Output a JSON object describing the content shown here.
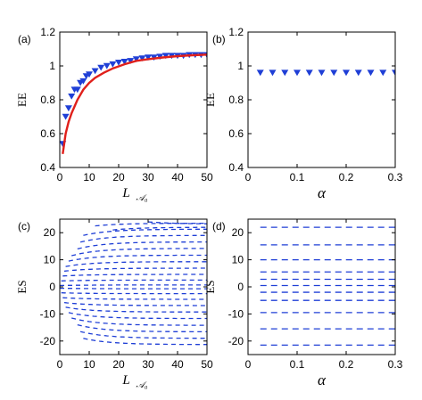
{
  "chart_data": [
    {
      "panel": "(a)",
      "type": "scatter",
      "xlabel": "L_A0",
      "xlabel_main": "L",
      "xlabel_sub": "𝒜₀",
      "ylabel": "EE",
      "xlim": [
        0,
        50
      ],
      "ylim": [
        0.4,
        1.2
      ],
      "xticks": [
        "0",
        "10",
        "20",
        "30",
        "40",
        "50"
      ],
      "yticks": [
        "0.4",
        "0.6",
        "0.8",
        "1",
        "1.2"
      ],
      "series": [
        {
          "kind": "markers",
          "marker": "triangle-down",
          "color": "#1f3fd6",
          "points": [
            [
              1,
              0.54
            ],
            [
              2,
              0.7
            ],
            [
              3,
              0.75
            ],
            [
              4,
              0.82
            ],
            [
              5,
              0.86
            ],
            [
              6,
              0.86
            ],
            [
              7,
              0.9
            ],
            [
              8,
              0.91
            ],
            [
              9,
              0.94
            ],
            [
              10,
              0.95
            ],
            [
              12,
              0.97
            ],
            [
              14,
              0.99
            ],
            [
              16,
              1.0
            ],
            [
              18,
              1.01
            ],
            [
              20,
              1.02
            ],
            [
              22,
              1.025
            ],
            [
              24,
              1.03
            ],
            [
              26,
              1.04
            ],
            [
              28,
              1.045
            ],
            [
              30,
              1.05
            ],
            [
              32,
              1.05
            ],
            [
              34,
              1.055
            ],
            [
              36,
              1.06
            ],
            [
              38,
              1.06
            ],
            [
              40,
              1.06
            ],
            [
              42,
              1.06
            ],
            [
              44,
              1.065
            ],
            [
              46,
              1.065
            ],
            [
              48,
              1.065
            ],
            [
              50,
              1.065
            ]
          ]
        },
        {
          "kind": "line",
          "color": "#e0201b",
          "points": [
            [
              1,
              0.48
            ],
            [
              2,
              0.6
            ],
            [
              3,
              0.67
            ],
            [
              4,
              0.72
            ],
            [
              5,
              0.76
            ],
            [
              6,
              0.8
            ],
            [
              8,
              0.86
            ],
            [
              10,
              0.9
            ],
            [
              12,
              0.93
            ],
            [
              15,
              0.96
            ],
            [
              18,
              0.985
            ],
            [
              22,
              1.01
            ],
            [
              26,
              1.03
            ],
            [
              30,
              1.04
            ],
            [
              35,
              1.05
            ],
            [
              40,
              1.058
            ],
            [
              45,
              1.063
            ],
            [
              50,
              1.067
            ]
          ]
        }
      ]
    },
    {
      "panel": "(b)",
      "type": "scatter",
      "xlabel": "α",
      "ylabel": "EE",
      "xlim": [
        0,
        0.3
      ],
      "ylim": [
        0.4,
        1.2
      ],
      "xticks": [
        "0",
        "0.1",
        "0.2",
        "0.3"
      ],
      "yticks": [
        "0.4",
        "0.6",
        "0.8",
        "1",
        "1.2"
      ],
      "series": [
        {
          "kind": "markers",
          "marker": "triangle-down",
          "color": "#1f3fd6",
          "points": [
            [
              0.025,
              0.96
            ],
            [
              0.05,
              0.96
            ],
            [
              0.075,
              0.96
            ],
            [
              0.1,
              0.96
            ],
            [
              0.125,
              0.96
            ],
            [
              0.15,
              0.96
            ],
            [
              0.175,
              0.96
            ],
            [
              0.2,
              0.96
            ],
            [
              0.225,
              0.96
            ],
            [
              0.25,
              0.96
            ],
            [
              0.275,
              0.96
            ],
            [
              0.3,
              0.96
            ]
          ]
        }
      ]
    },
    {
      "panel": "(c)",
      "type": "line",
      "xlabel": "L_A0",
      "xlabel_main": "L",
      "xlabel_sub": "𝒜₀",
      "ylabel": "ES",
      "xlim": [
        0,
        50
      ],
      "ylim": [
        -25,
        25
      ],
      "xticks": [
        "0",
        "10",
        "20",
        "30",
        "40",
        "50"
      ],
      "yticks": [
        "-20",
        "-10",
        "0",
        "10",
        "20"
      ],
      "dashed": true,
      "color": "#1f3fd6",
      "levels": [
        {
          "start": 0.0,
          "y0": 0.5,
          "yinf": 0.7
        },
        {
          "start": 0.0,
          "y0": -0.5,
          "yinf": -0.7
        },
        {
          "start": 0.5,
          "y0": 2.2,
          "yinf": 2.5
        },
        {
          "start": 0.5,
          "y0": -2.2,
          "yinf": -2.5
        },
        {
          "start": 1.0,
          "y0": 4.0,
          "yinf": 4.6
        },
        {
          "start": 1.0,
          "y0": -4.0,
          "yinf": -4.6
        },
        {
          "start": 1.5,
          "y0": 5.8,
          "yinf": 6.9
        },
        {
          "start": 1.5,
          "y0": -5.8,
          "yinf": -6.9
        },
        {
          "start": 2.0,
          "y0": 7.5,
          "yinf": 9.3
        },
        {
          "start": 2.0,
          "y0": -7.5,
          "yinf": -9.3
        },
        {
          "start": 3.0,
          "y0": 9.5,
          "yinf": 11.7
        },
        {
          "start": 3.0,
          "y0": -9.5,
          "yinf": -11.7
        },
        {
          "start": 4.0,
          "y0": 11.5,
          "yinf": 14.2
        },
        {
          "start": 4.0,
          "y0": -11.5,
          "yinf": -14.2
        },
        {
          "start": 6.0,
          "y0": 14.0,
          "yinf": 16.6
        },
        {
          "start": 6.0,
          "y0": -14.0,
          "yinf": -16.6
        },
        {
          "start": 7.0,
          "y0": 16.5,
          "yinf": 19.0
        },
        {
          "start": 7.0,
          "y0": -16.5,
          "yinf": -19.0
        },
        {
          "start": 8.0,
          "y0": 19.0,
          "yinf": 21.3
        },
        {
          "start": 8.0,
          "y0": -19.0,
          "yinf": -21.3
        },
        {
          "start": 12.0,
          "y0": 22.5,
          "yinf": 23.5
        },
        {
          "start": 18.0,
          "y0": 21.0,
          "yinf": 22.0
        },
        {
          "start": 30.0,
          "y0": 24.0,
          "yinf": 23.2
        }
      ]
    },
    {
      "panel": "(d)",
      "type": "line",
      "xlabel": "α",
      "ylabel": "ES",
      "xlim": [
        0,
        0.3
      ],
      "ylim": [
        -25,
        25
      ],
      "xticks": [
        "0",
        "0.1",
        "0.2",
        "0.3"
      ],
      "yticks": [
        "-20",
        "-10",
        "0",
        "10",
        "20"
      ],
      "dashed": true,
      "color": "#1f3fd6",
      "levels_y": [
        22.0,
        15.5,
        10.0,
        5.5,
        2.8,
        0.5,
        -2.0,
        -5.0,
        -9.5,
        -15.5,
        -21.5
      ]
    }
  ]
}
